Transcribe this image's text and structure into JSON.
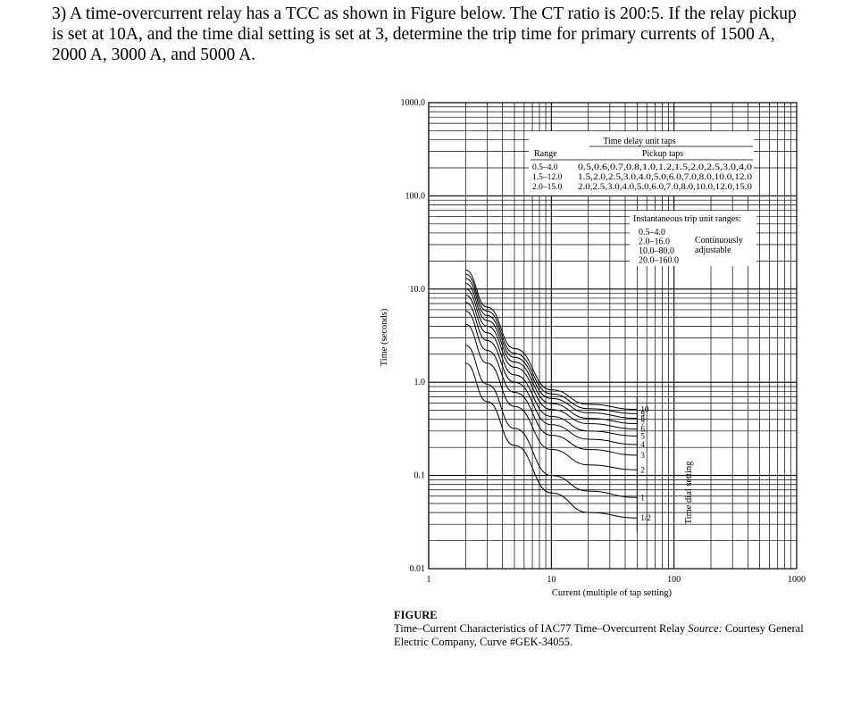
{
  "question": "3) A time-overcurrent relay has a TCC as shown in Figure below. The CT ratio is 200:5. If the relay pickup is set at 10A, and the time dial setting is set at 3, determine the trip time for primary currents of 1500 A, 2000 A, 3000 A, and 5000 A.",
  "caption": {
    "label": "FIGURE",
    "text_before_source": "Time–Current Characteristics of IAC77 Time–Overcurrent Relay ",
    "source_label": "Source:",
    "text_after_source": " Courtesy General Electric Company, Curve #GEK-34055."
  },
  "chart_data": {
    "type": "line",
    "x_scale": "log",
    "y_scale": "log",
    "xlim": [
      1,
      1000
    ],
    "ylim": [
      0.01,
      1000
    ],
    "xlabel": "Current (multiple of tap setting)",
    "ylabel": "Time (seconds)",
    "x_ticks": [
      {
        "value": 1,
        "label": "1"
      },
      {
        "value": 10,
        "label": "10"
      },
      {
        "value": 100,
        "label": "100"
      },
      {
        "value": 1000,
        "label": "1000"
      }
    ],
    "y_ticks": [
      {
        "value": 1000,
        "label": "1000.0"
      },
      {
        "value": 100,
        "label": "100.0"
      },
      {
        "value": 10,
        "label": "10.0"
      },
      {
        "value": 1,
        "label": "1.0"
      },
      {
        "value": 0.1,
        "label": "0.1"
      },
      {
        "value": 0.01,
        "label": "0.01"
      }
    ],
    "grid": true,
    "series_label": "Time dial setting",
    "series": [
      {
        "name": "1/2",
        "x": [
          2,
          3,
          5,
          10,
          20,
          50
        ],
        "y": [
          1.6,
          0.62,
          0.21,
          0.065,
          0.04,
          0.035
        ]
      },
      {
        "name": "1",
        "x": [
          2,
          3,
          5,
          10,
          20,
          50
        ],
        "y": [
          2.5,
          0.95,
          0.32,
          0.1,
          0.068,
          0.058
        ]
      },
      {
        "name": "2",
        "x": [
          2,
          3,
          5,
          10,
          20,
          50
        ],
        "y": [
          4.2,
          1.6,
          0.55,
          0.19,
          0.13,
          0.115
        ]
      },
      {
        "name": "3",
        "x": [
          2,
          3,
          5,
          10,
          20,
          50
        ],
        "y": [
          5.8,
          2.2,
          0.78,
          0.27,
          0.19,
          0.165
        ]
      },
      {
        "name": "4",
        "x": [
          2,
          3,
          5,
          10,
          20,
          50
        ],
        "y": [
          7.2,
          2.8,
          1.0,
          0.35,
          0.245,
          0.215
        ]
      },
      {
        "name": "5",
        "x": [
          2,
          3,
          5,
          10,
          20,
          50
        ],
        "y": [
          8.6,
          3.4,
          1.2,
          0.43,
          0.3,
          0.265
        ]
      },
      {
        "name": "6",
        "x": [
          2,
          3,
          5,
          10,
          20,
          50
        ],
        "y": [
          10,
          4.0,
          1.45,
          0.51,
          0.36,
          0.315
        ]
      },
      {
        "name": "7",
        "x": [
          2,
          3,
          5,
          10,
          20,
          50
        ],
        "y": [
          11.5,
          4.6,
          1.65,
          0.59,
          0.41,
          0.36
        ]
      },
      {
        "name": "8",
        "x": [
          2,
          3,
          5,
          10,
          20,
          50
        ],
        "y": [
          13,
          5.2,
          1.85,
          0.67,
          0.47,
          0.41
        ]
      },
      {
        "name": "9",
        "x": [
          2,
          3,
          5,
          10,
          20,
          50
        ],
        "y": [
          14.5,
          5.8,
          2.05,
          0.75,
          0.52,
          0.46
        ]
      },
      {
        "name": "10",
        "x": [
          2,
          3,
          5,
          10,
          20,
          50
        ],
        "y": [
          16,
          6.4,
          2.3,
          0.83,
          0.58,
          0.51
        ]
      }
    ],
    "annotations": {
      "tap_table": {
        "title": "Time delay unit taps",
        "col_range": "Range",
        "col_pickup": "Pickup taps",
        "rows": [
          {
            "range": "0.5–4.0",
            "taps": "0.5,0.6,0.7,0.8,1.0,1.2,1.5,2.0,2.5,3.0,4.0"
          },
          {
            "range": "1.5–12.0",
            "taps": "1.5,2.0,2.5,3.0,4.0,5.0,6.0,7.0,8.0,10.0,12.0"
          },
          {
            "range": "2.0–15.0",
            "taps": "2.0,2.5,3.0,4.0,5.0,6.0,7.0,8.0,10.0,12.0,15.0"
          }
        ]
      },
      "instantaneous": {
        "title": "Instantaneous trip unit ranges:",
        "ranges": [
          "0.5–4.0",
          "2.0–16.0",
          "10.0–80.0",
          "20.0–160.0"
        ],
        "note": "Continuously adjustable"
      }
    }
  }
}
